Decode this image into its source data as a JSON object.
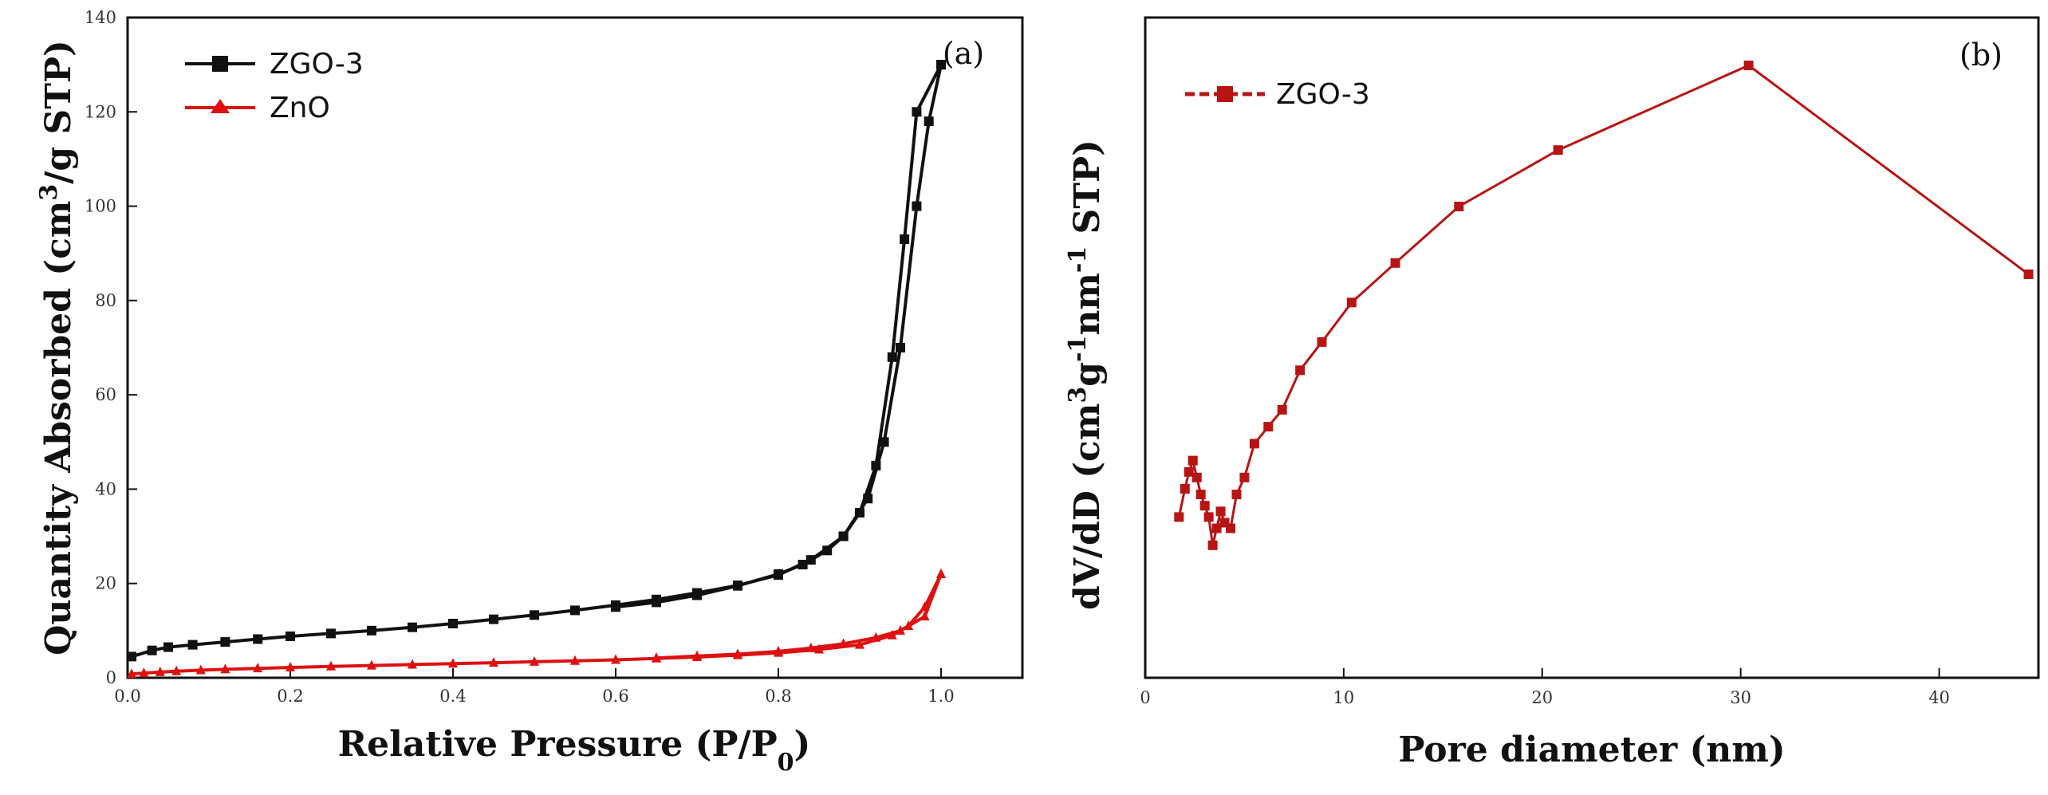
{
  "chart_data": [
    {
      "panel_label": "(a)",
      "type": "line",
      "xlabel_main": "Relative Pressure (P/P",
      "xlabel_sub": "0",
      "xlabel_end": ")",
      "ylabel_main": "Quantity Absorbed (cm",
      "ylabel_sup": "3",
      "ylabel_end": "/g STP)",
      "xlim": [
        0,
        1.1
      ],
      "ylim": [
        0,
        140
      ],
      "x_ticks": [
        0.0,
        0.2,
        0.4,
        0.6,
        0.8,
        1.0
      ],
      "x_tick_labels": [
        "0.0",
        "0.2",
        "0.4",
        "0.6",
        "0.8",
        "1.0"
      ],
      "y_ticks": [
        0,
        20,
        40,
        60,
        80,
        100,
        120,
        140
      ],
      "y_tick_labels": [
        "0",
        "20",
        "40",
        "60",
        "80",
        "100",
        "120",
        "140"
      ],
      "series": [
        {
          "name": "ZGO-3",
          "color": "#111111",
          "marker": "square",
          "adsorption": {
            "x": [
              0.005,
              0.03,
              0.05,
              0.08,
              0.12,
              0.16,
              0.2,
              0.25,
              0.3,
              0.35,
              0.4,
              0.45,
              0.5,
              0.55,
              0.6,
              0.65,
              0.7,
              0.75,
              0.8,
              0.84,
              0.88,
              0.91,
              0.93,
              0.95,
              0.97,
              0.985,
              1.0
            ],
            "y": [
              4.5,
              5.8,
              6.5,
              7.0,
              7.6,
              8.2,
              8.8,
              9.4,
              10.0,
              10.7,
              11.5,
              12.4,
              13.3,
              14.3,
              15.4,
              16.6,
              18.0,
              19.6,
              21.8,
              25.0,
              30.0,
              38.0,
              50.0,
              70.0,
              100.0,
              118.0,
              130.0
            ]
          },
          "desorption": {
            "x": [
              1.0,
              0.97,
              0.955,
              0.94,
              0.92,
              0.9,
              0.88,
              0.86,
              0.83,
              0.8,
              0.75,
              0.7,
              0.65,
              0.6
            ],
            "y": [
              130.0,
              120.0,
              93.0,
              68.0,
              45.0,
              35.0,
              30.0,
              27.0,
              24.0,
              22.0,
              19.5,
              17.5,
              16.0,
              15.0
            ]
          }
        },
        {
          "name": "ZnO",
          "color": "#dd1111",
          "marker": "triangle",
          "adsorption": {
            "x": [
              0.005,
              0.02,
              0.04,
              0.06,
              0.09,
              0.12,
              0.16,
              0.2,
              0.25,
              0.3,
              0.35,
              0.4,
              0.45,
              0.5,
              0.55,
              0.6,
              0.65,
              0.7,
              0.75,
              0.8,
              0.85,
              0.9,
              0.94,
              0.96,
              0.98,
              1.0
            ],
            "y": [
              0.8,
              1.0,
              1.2,
              1.4,
              1.6,
              1.8,
              2.0,
              2.2,
              2.4,
              2.6,
              2.8,
              3.0,
              3.2,
              3.4,
              3.6,
              3.8,
              4.1,
              4.4,
              4.8,
              5.3,
              6.0,
              7.0,
              9.0,
              11.0,
              15.0,
              22.0
            ]
          },
          "desorption": {
            "x": [
              1.0,
              0.98,
              0.95,
              0.92,
              0.88,
              0.84,
              0.8,
              0.75,
              0.7,
              0.65
            ],
            "y": [
              22.0,
              13.0,
              10.0,
              8.5,
              7.2,
              6.3,
              5.6,
              5.0,
              4.6,
              4.2
            ]
          }
        }
      ]
    },
    {
      "panel_label": "(b)",
      "type": "line",
      "xlabel": "Pore diameter (nm)",
      "ylabel_main": "dV/dD (cm",
      "ylabel_sup1": "3",
      "ylabel_mid1": "g",
      "ylabel_sup2": "-1",
      "ylabel_mid2": "nm",
      "ylabel_sup3": "-1",
      "ylabel_end": " STP)",
      "xlim": [
        0,
        45
      ],
      "ylim": [
        0,
        100
      ],
      "x_ticks": [
        0,
        10,
        20,
        30,
        40
      ],
      "x_tick_labels": [
        "0",
        "10",
        "20",
        "30",
        "40"
      ],
      "series": [
        {
          "name": "ZGO-3",
          "color": "#b81414",
          "marker": "square",
          "x": [
            1.7,
            2.0,
            2.2,
            2.4,
            2.6,
            2.8,
            3.0,
            3.2,
            3.4,
            3.6,
            3.8,
            4.0,
            4.3,
            4.6,
            5.0,
            5.5,
            6.2,
            6.9,
            7.8,
            8.9,
            10.4,
            12.6,
            15.8,
            20.8,
            30.4,
            44.5
          ],
          "y": [
            20.0,
            25.0,
            28.0,
            30.0,
            27.0,
            24.0,
            22.0,
            20.0,
            15.0,
            18.0,
            21.0,
            19.0,
            18.0,
            24.0,
            27.0,
            33.0,
            36.0,
            39.0,
            46.0,
            51.0,
            58.0,
            65.0,
            75.0,
            85.0,
            100.0,
            63.0
          ]
        }
      ]
    }
  ]
}
